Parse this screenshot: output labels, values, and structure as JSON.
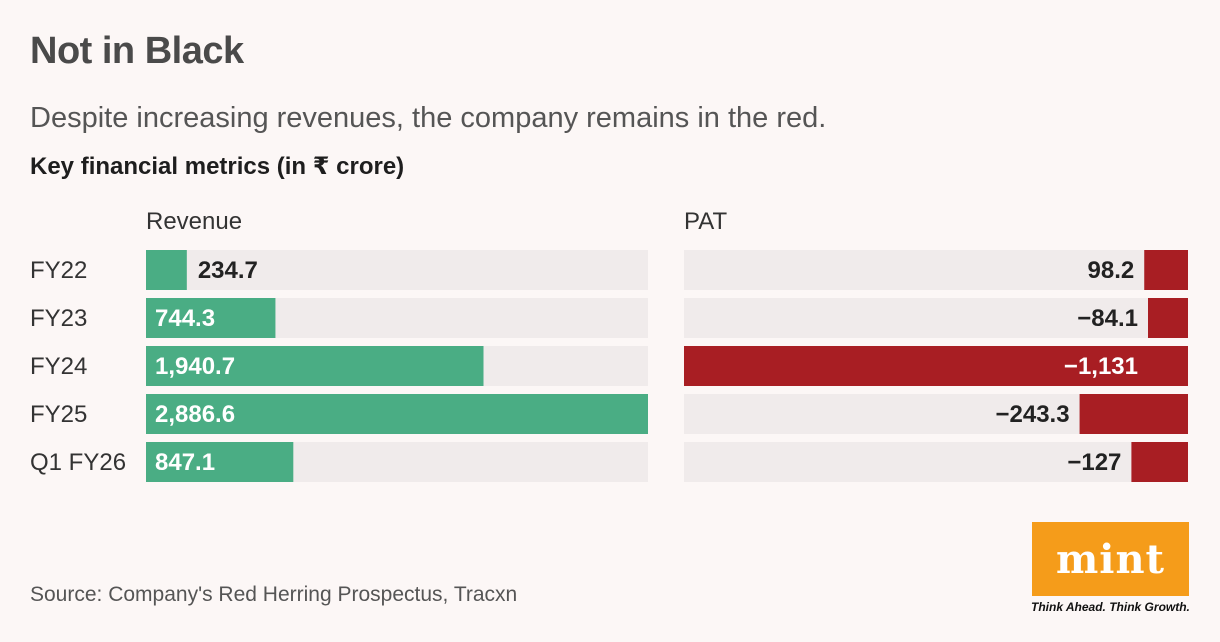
{
  "header": {
    "title": "Not in Black",
    "subtitle": "Despite increasing revenues, the company remains in the red.",
    "units": "Key financial metrics (in ₹ crore)"
  },
  "footer": {
    "source": "Source: Company's Red Herring Prospectus, Tracxn",
    "logo_text": "mint",
    "tagline": "Think Ahead. Think Growth."
  },
  "colors": {
    "revenue": "#4aad84",
    "pat": "#a81e23",
    "track": "#f0ebeb",
    "logo": "#f59c1a"
  },
  "chart_data": {
    "type": "bar",
    "title": "Key financial metrics (in ₹ crore)",
    "categories": [
      "FY22",
      "FY23",
      "FY24",
      "FY25",
      "Q1 FY26"
    ],
    "series": [
      {
        "name": "Revenue",
        "values": [
          234.7,
          744.3,
          1940.7,
          2886.6,
          847.1
        ],
        "labels": [
          "234.7",
          "744.3",
          "1,940.7",
          "2,886.6",
          "847.1"
        ],
        "direction": "left-to-right"
      },
      {
        "name": "PAT",
        "values": [
          98.2,
          -84.1,
          -1131,
          -243.3,
          -127
        ],
        "labels": [
          "98.2",
          "−84.1",
          "−1,131",
          "−243.3",
          "−127"
        ],
        "direction": "right-to-left"
      }
    ]
  }
}
